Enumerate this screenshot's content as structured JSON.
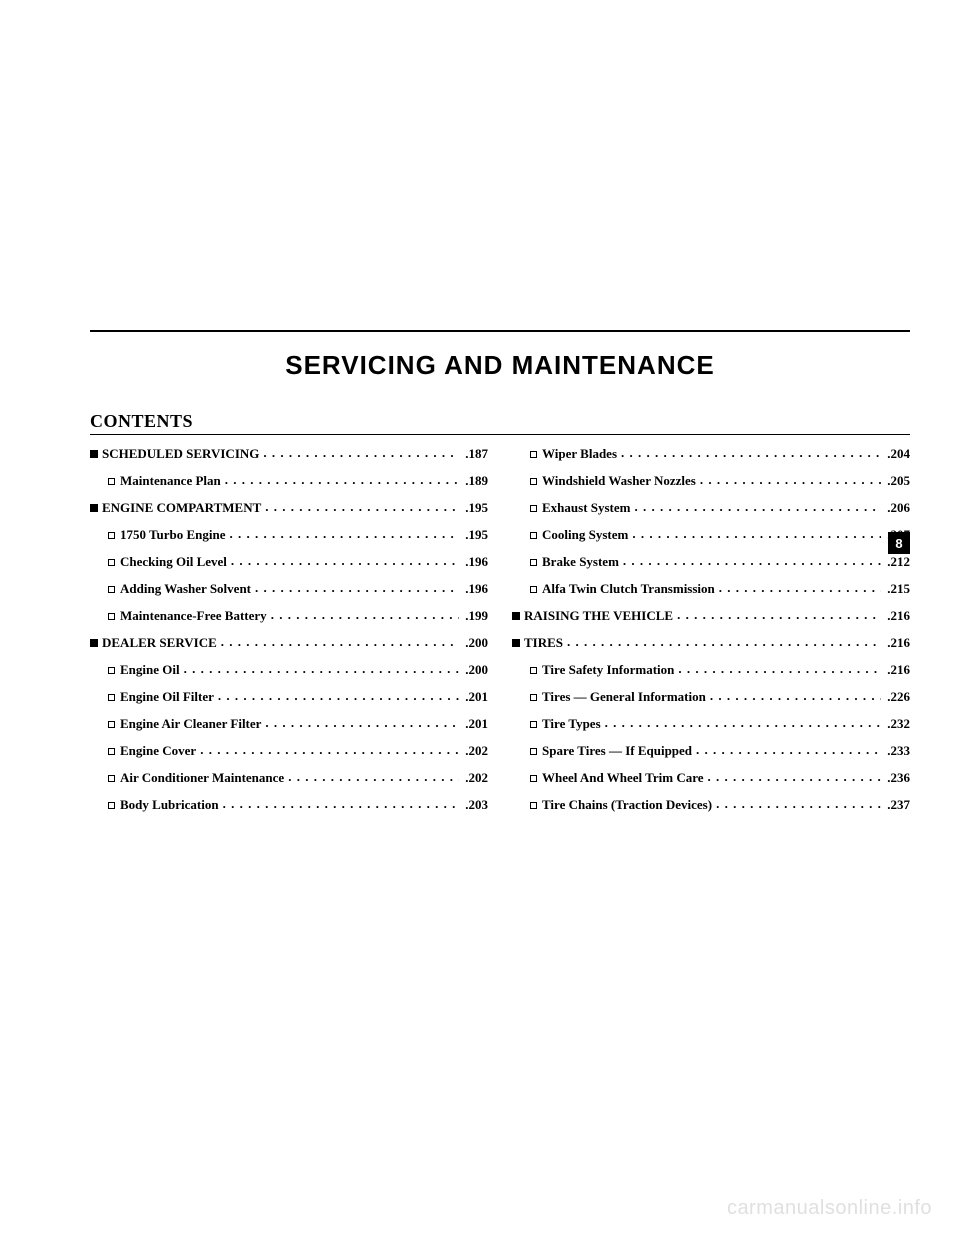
{
  "chapter_title": "SERVICING AND MAINTENANCE",
  "contents_heading": "CONTENTS",
  "section_tab": "8",
  "watermark": "carmanualsonline.info",
  "left_column": [
    {
      "level": 0,
      "label": "SCHEDULED SERVICING",
      "page": ".187"
    },
    {
      "level": 1,
      "label": "Maintenance Plan",
      "page": ".189"
    },
    {
      "level": 0,
      "label": "ENGINE COMPARTMENT",
      "page": ".195"
    },
    {
      "level": 1,
      "label": "1750 Turbo Engine",
      "page": ".195"
    },
    {
      "level": 1,
      "label": "Checking Oil Level",
      "page": ".196"
    },
    {
      "level": 1,
      "label": "Adding Washer Solvent",
      "page": ".196"
    },
    {
      "level": 1,
      "label": "Maintenance-Free Battery",
      "page": ".199"
    },
    {
      "level": 0,
      "label": "DEALER SERVICE",
      "page": ".200"
    },
    {
      "level": 1,
      "label": "Engine Oil",
      "page": ".200"
    },
    {
      "level": 1,
      "label": "Engine Oil Filter",
      "page": ".201"
    },
    {
      "level": 1,
      "label": "Engine Air Cleaner Filter",
      "page": ".201"
    },
    {
      "level": 1,
      "label": "Engine Cover",
      "page": ".202"
    },
    {
      "level": 1,
      "label": "Air Conditioner Maintenance",
      "page": ".202"
    },
    {
      "level": 1,
      "label": "Body Lubrication",
      "page": ".203"
    }
  ],
  "right_column": [
    {
      "level": 1,
      "label": "Wiper Blades",
      "page": ".204"
    },
    {
      "level": 1,
      "label": "Windshield Washer Nozzles",
      "page": ".205"
    },
    {
      "level": 1,
      "label": "Exhaust System",
      "page": ".206"
    },
    {
      "level": 1,
      "label": "Cooling System",
      "page": ".207"
    },
    {
      "level": 1,
      "label": "Brake System",
      "page": ".212"
    },
    {
      "level": 1,
      "label": "Alfa Twin Clutch Transmission",
      "page": ".215"
    },
    {
      "level": 0,
      "label": "RAISING THE VEHICLE",
      "page": ".216"
    },
    {
      "level": 0,
      "label": "TIRES",
      "page": ".216"
    },
    {
      "level": 1,
      "label": "Tire Safety Information",
      "page": ".216"
    },
    {
      "level": 1,
      "label": "Tires — General Information",
      "page": ".226"
    },
    {
      "level": 1,
      "label": "Tire Types",
      "page": ".232"
    },
    {
      "level": 1,
      "label": "Spare Tires — If Equipped",
      "page": ".233"
    },
    {
      "level": 1,
      "label": "Wheel And Wheel Trim Care",
      "page": ".236"
    },
    {
      "level": 1,
      "label": "Tire Chains (Traction Devices)",
      "page": ".237"
    }
  ]
}
